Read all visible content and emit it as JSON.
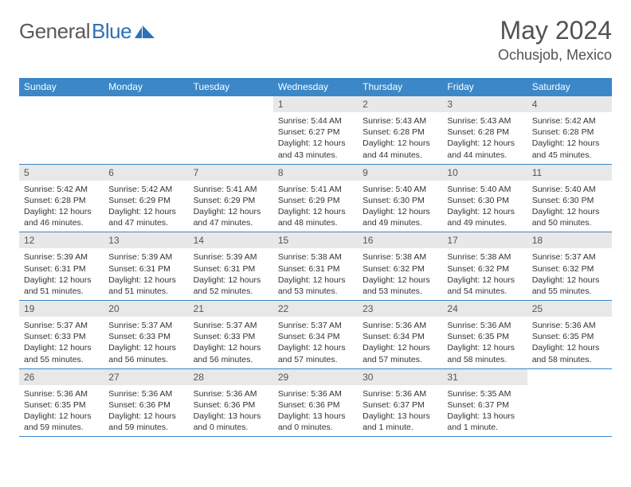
{
  "brand": {
    "part1": "General",
    "part2": "Blue"
  },
  "title": "May 2024",
  "location": "Ochusjob, Mexico",
  "colors": {
    "header_bg": "#3b87c8",
    "daynum_bg": "#e8e8e8",
    "border": "#3b87c8",
    "logo_blue": "#2c72b8",
    "text_gray": "#525252"
  },
  "day_headers": [
    "Sunday",
    "Monday",
    "Tuesday",
    "Wednesday",
    "Thursday",
    "Friday",
    "Saturday"
  ],
  "weeks": [
    [
      {
        "n": "",
        "sr": "",
        "ss": "",
        "dl": ""
      },
      {
        "n": "",
        "sr": "",
        "ss": "",
        "dl": ""
      },
      {
        "n": "",
        "sr": "",
        "ss": "",
        "dl": ""
      },
      {
        "n": "1",
        "sr": "Sunrise: 5:44 AM",
        "ss": "Sunset: 6:27 PM",
        "dl": "Daylight: 12 hours and 43 minutes."
      },
      {
        "n": "2",
        "sr": "Sunrise: 5:43 AM",
        "ss": "Sunset: 6:28 PM",
        "dl": "Daylight: 12 hours and 44 minutes."
      },
      {
        "n": "3",
        "sr": "Sunrise: 5:43 AM",
        "ss": "Sunset: 6:28 PM",
        "dl": "Daylight: 12 hours and 44 minutes."
      },
      {
        "n": "4",
        "sr": "Sunrise: 5:42 AM",
        "ss": "Sunset: 6:28 PM",
        "dl": "Daylight: 12 hours and 45 minutes."
      }
    ],
    [
      {
        "n": "5",
        "sr": "Sunrise: 5:42 AM",
        "ss": "Sunset: 6:28 PM",
        "dl": "Daylight: 12 hours and 46 minutes."
      },
      {
        "n": "6",
        "sr": "Sunrise: 5:42 AM",
        "ss": "Sunset: 6:29 PM",
        "dl": "Daylight: 12 hours and 47 minutes."
      },
      {
        "n": "7",
        "sr": "Sunrise: 5:41 AM",
        "ss": "Sunset: 6:29 PM",
        "dl": "Daylight: 12 hours and 47 minutes."
      },
      {
        "n": "8",
        "sr": "Sunrise: 5:41 AM",
        "ss": "Sunset: 6:29 PM",
        "dl": "Daylight: 12 hours and 48 minutes."
      },
      {
        "n": "9",
        "sr": "Sunrise: 5:40 AM",
        "ss": "Sunset: 6:30 PM",
        "dl": "Daylight: 12 hours and 49 minutes."
      },
      {
        "n": "10",
        "sr": "Sunrise: 5:40 AM",
        "ss": "Sunset: 6:30 PM",
        "dl": "Daylight: 12 hours and 49 minutes."
      },
      {
        "n": "11",
        "sr": "Sunrise: 5:40 AM",
        "ss": "Sunset: 6:30 PM",
        "dl": "Daylight: 12 hours and 50 minutes."
      }
    ],
    [
      {
        "n": "12",
        "sr": "Sunrise: 5:39 AM",
        "ss": "Sunset: 6:31 PM",
        "dl": "Daylight: 12 hours and 51 minutes."
      },
      {
        "n": "13",
        "sr": "Sunrise: 5:39 AM",
        "ss": "Sunset: 6:31 PM",
        "dl": "Daylight: 12 hours and 51 minutes."
      },
      {
        "n": "14",
        "sr": "Sunrise: 5:39 AM",
        "ss": "Sunset: 6:31 PM",
        "dl": "Daylight: 12 hours and 52 minutes."
      },
      {
        "n": "15",
        "sr": "Sunrise: 5:38 AM",
        "ss": "Sunset: 6:31 PM",
        "dl": "Daylight: 12 hours and 53 minutes."
      },
      {
        "n": "16",
        "sr": "Sunrise: 5:38 AM",
        "ss": "Sunset: 6:32 PM",
        "dl": "Daylight: 12 hours and 53 minutes."
      },
      {
        "n": "17",
        "sr": "Sunrise: 5:38 AM",
        "ss": "Sunset: 6:32 PM",
        "dl": "Daylight: 12 hours and 54 minutes."
      },
      {
        "n": "18",
        "sr": "Sunrise: 5:37 AM",
        "ss": "Sunset: 6:32 PM",
        "dl": "Daylight: 12 hours and 55 minutes."
      }
    ],
    [
      {
        "n": "19",
        "sr": "Sunrise: 5:37 AM",
        "ss": "Sunset: 6:33 PM",
        "dl": "Daylight: 12 hours and 55 minutes."
      },
      {
        "n": "20",
        "sr": "Sunrise: 5:37 AM",
        "ss": "Sunset: 6:33 PM",
        "dl": "Daylight: 12 hours and 56 minutes."
      },
      {
        "n": "21",
        "sr": "Sunrise: 5:37 AM",
        "ss": "Sunset: 6:33 PM",
        "dl": "Daylight: 12 hours and 56 minutes."
      },
      {
        "n": "22",
        "sr": "Sunrise: 5:37 AM",
        "ss": "Sunset: 6:34 PM",
        "dl": "Daylight: 12 hours and 57 minutes."
      },
      {
        "n": "23",
        "sr": "Sunrise: 5:36 AM",
        "ss": "Sunset: 6:34 PM",
        "dl": "Daylight: 12 hours and 57 minutes."
      },
      {
        "n": "24",
        "sr": "Sunrise: 5:36 AM",
        "ss": "Sunset: 6:35 PM",
        "dl": "Daylight: 12 hours and 58 minutes."
      },
      {
        "n": "25",
        "sr": "Sunrise: 5:36 AM",
        "ss": "Sunset: 6:35 PM",
        "dl": "Daylight: 12 hours and 58 minutes."
      }
    ],
    [
      {
        "n": "26",
        "sr": "Sunrise: 5:36 AM",
        "ss": "Sunset: 6:35 PM",
        "dl": "Daylight: 12 hours and 59 minutes."
      },
      {
        "n": "27",
        "sr": "Sunrise: 5:36 AM",
        "ss": "Sunset: 6:36 PM",
        "dl": "Daylight: 12 hours and 59 minutes."
      },
      {
        "n": "28",
        "sr": "Sunrise: 5:36 AM",
        "ss": "Sunset: 6:36 PM",
        "dl": "Daylight: 13 hours and 0 minutes."
      },
      {
        "n": "29",
        "sr": "Sunrise: 5:36 AM",
        "ss": "Sunset: 6:36 PM",
        "dl": "Daylight: 13 hours and 0 minutes."
      },
      {
        "n": "30",
        "sr": "Sunrise: 5:36 AM",
        "ss": "Sunset: 6:37 PM",
        "dl": "Daylight: 13 hours and 1 minute."
      },
      {
        "n": "31",
        "sr": "Sunrise: 5:35 AM",
        "ss": "Sunset: 6:37 PM",
        "dl": "Daylight: 13 hours and 1 minute."
      },
      {
        "n": "",
        "sr": "",
        "ss": "",
        "dl": ""
      }
    ]
  ]
}
